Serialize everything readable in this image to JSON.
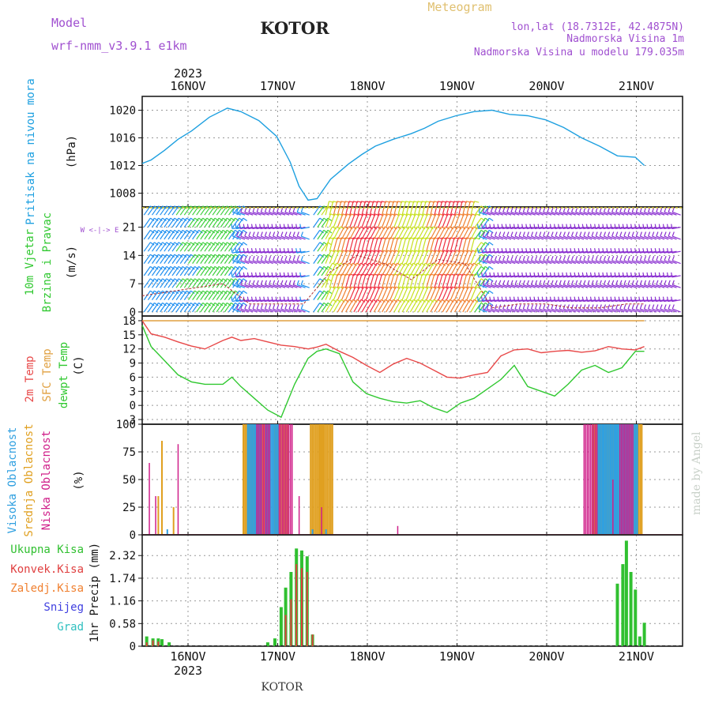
{
  "header": {
    "model_label": "Model",
    "model_name": "wrf-nmm_v3.9.1  e1km",
    "station": "KOTOR",
    "chart_title": "Meteogram",
    "lonlat": "lon,lat (18.7312E, 42.4875N)",
    "elevation": "Nadmorska Visina 1m",
    "model_elevation": "Nadmorska Visina u modelu 179.035m",
    "footer_station": "KOTOR",
    "watermark": "made by Angel"
  },
  "colors": {
    "pressure": "#1ea0e0",
    "t2m": "#e84848",
    "sfc": "#e0a040",
    "dewpt": "#30c830",
    "cloud_high": "#30a0e0",
    "cloud_mid": "#e0a020",
    "cloud_low": "#d0208a",
    "rain_total": "#30c030",
    "rain_conv": "#e04040",
    "rain_frz": "#f08030",
    "snow": "#4040e0",
    "hail": "#30c0c0",
    "title_purple": "#a050d0",
    "title_gold": "#e0c070",
    "grid": "#999999"
  },
  "chart_data": [
    {
      "type": "line",
      "panel": "pressure",
      "ylabel_1": "Pritisak na nivou mora",
      "ylabel_2": "(hPa)",
      "x_days": [
        "16NOV",
        "17NOV",
        "18NOV",
        "19NOV",
        "20NOV",
        "21NOV"
      ],
      "year_label": "2023",
      "ylim": [
        1006,
        1022
      ],
      "yticks": [
        1008,
        1012,
        1016,
        1020
      ],
      "x": [
        0,
        0.1,
        0.25,
        0.4,
        0.55,
        0.75,
        0.95,
        1.1,
        1.3,
        1.5,
        1.65,
        1.75,
        1.85,
        1.95,
        2.1,
        2.3,
        2.45,
        2.6,
        2.8,
        3.0,
        3.15,
        3.3,
        3.5,
        3.7,
        3.9,
        4.1,
        4.3,
        4.5,
        4.7,
        4.9,
        5.1,
        5.3,
        5.5,
        5.6
      ],
      "series": [
        {
          "values": [
            1012.3,
            1012.8,
            1014.2,
            1015.8,
            1017.0,
            1019.0,
            1020.3,
            1019.8,
            1018.5,
            1016.2,
            1012.5,
            1009.0,
            1007.0,
            1007.2,
            1010.0,
            1012.2,
            1013.6,
            1014.8,
            1015.8,
            1016.6,
            1017.4,
            1018.4,
            1019.2,
            1019.8,
            1020.0,
            1019.4,
            1019.2,
            1018.6,
            1017.5,
            1016.0,
            1014.8,
            1013.4,
            1013.2,
            1012.0
          ]
        }
      ]
    },
    {
      "type": "barbs",
      "panel": "wind",
      "ylabel_1": "10m Vjetar",
      "ylabel_2": "Brzina i Pravac",
      "ylabel_3": "(m/s)",
      "legend_glyph": "W  <-|->  E",
      "ylim": [
        -1,
        26
      ],
      "yticks": [
        0,
        7,
        14,
        21
      ],
      "x": [
        0,
        0.3,
        0.6,
        0.9,
        1.2,
        1.5,
        1.8,
        2.1,
        2.4,
        2.7,
        3.0,
        3.3,
        3.6,
        3.9,
        4.2,
        4.5,
        4.8,
        5.1,
        5.4,
        5.6
      ],
      "speed_values": [
        4,
        5,
        6,
        7,
        2,
        2,
        2,
        10,
        14,
        12,
        8,
        13,
        12,
        1,
        2,
        2,
        1,
        1,
        2,
        2
      ]
    },
    {
      "type": "line",
      "panel": "temperature",
      "ylabel_1": "2m Temp",
      "ylabel_2": "SFC Temp",
      "ylabel_3": "dewpt Temp",
      "ylabel_4": "(C)",
      "ylim": [
        -4,
        19
      ],
      "yticks": [
        -3,
        0,
        3,
        6,
        9,
        12,
        15,
        18
      ],
      "x": [
        0,
        0.1,
        0.25,
        0.4,
        0.55,
        0.7,
        0.9,
        1.0,
        1.1,
        1.25,
        1.4,
        1.55,
        1.7,
        1.85,
        1.95,
        2.05,
        2.2,
        2.35,
        2.5,
        2.65,
        2.8,
        2.95,
        3.1,
        3.25,
        3.4,
        3.55,
        3.7,
        3.85,
        4.0,
        4.15,
        4.3,
        4.45,
        4.6,
        4.75,
        4.9,
        5.05,
        5.2,
        5.35,
        5.5,
        5.6
      ],
      "series": [
        {
          "name": "2m Temp",
          "values": [
            18,
            15.2,
            14.5,
            13.5,
            12.6,
            12.0,
            13.8,
            14.5,
            13.8,
            14.2,
            13.5,
            12.8,
            12.5,
            12.0,
            12.4,
            13.0,
            11.5,
            10.2,
            8.5,
            7.0,
            8.8,
            10.0,
            9.0,
            7.5,
            6.0,
            5.8,
            6.5,
            7.0,
            10.5,
            11.8,
            12.0,
            11.2,
            11.5,
            11.7,
            11.3,
            11.6,
            12.5,
            12.0,
            11.8,
            12.5
          ]
        },
        {
          "name": "SFC Temp",
          "values": [
            18,
            18,
            18,
            18,
            18,
            18,
            18,
            18,
            18,
            18,
            18,
            18,
            18,
            18,
            18,
            18,
            18,
            18,
            18,
            18,
            18,
            18,
            18,
            18,
            18,
            18,
            18,
            18,
            18,
            18,
            18,
            18,
            18,
            18,
            18,
            18,
            18,
            18,
            18,
            18
          ]
        },
        {
          "name": "dewpt Temp",
          "values": [
            17,
            12.5,
            9.5,
            6.5,
            5.0,
            4.5,
            4.5,
            6.0,
            4.0,
            1.5,
            -1.0,
            -2.5,
            4.5,
            10.0,
            11.5,
            12.0,
            11.0,
            5.0,
            2.5,
            1.5,
            0.8,
            0.5,
            1.0,
            -0.5,
            -1.5,
            0.5,
            1.5,
            3.5,
            5.5,
            8.5,
            4.0,
            3.0,
            2.0,
            4.5,
            7.5,
            8.5,
            7.0,
            8.0,
            11.5,
            11.5
          ]
        }
      ]
    },
    {
      "type": "bar",
      "panel": "clouds",
      "ylabel_1": "Visoka Oblacnost",
      "ylabel_2": "Srednja Oblacnost",
      "ylabel_3": "Niska Oblacnost",
      "ylabel_4": "(%)",
      "ylim": [
        0,
        100
      ],
      "yticks": [
        0,
        25,
        50,
        75,
        100
      ],
      "bars_high": [
        [
          0.28,
          5
        ],
        [
          1.25,
          100
        ],
        [
          1.45,
          100
        ],
        [
          1.9,
          5
        ],
        [
          2.05,
          5
        ],
        [
          5.15,
          100
        ],
        [
          5.3,
          100
        ],
        [
          5.45,
          100
        ]
      ],
      "bars_mid": [
        [
          0.18,
          35
        ],
        [
          0.22,
          85
        ],
        [
          0.35,
          25
        ],
        [
          1.2,
          100
        ],
        [
          1.3,
          100
        ],
        [
          1.55,
          100
        ],
        [
          1.95,
          100
        ],
        [
          2.05,
          100
        ],
        [
          5.1,
          100
        ],
        [
          5.2,
          100
        ],
        [
          5.35,
          100
        ],
        [
          5.5,
          100
        ]
      ],
      "bars_low": [
        [
          0.08,
          65
        ],
        [
          0.15,
          35
        ],
        [
          0.4,
          82
        ],
        [
          1.35,
          100
        ],
        [
          1.6,
          100
        ],
        [
          1.75,
          35
        ],
        [
          2.0,
          25
        ],
        [
          2.85,
          8
        ],
        [
          5.0,
          100
        ],
        [
          5.25,
          50
        ],
        [
          5.4,
          100
        ]
      ]
    },
    {
      "type": "bar",
      "panel": "precip",
      "ylabel_1": "Ukupna Kisa",
      "ylabel_2": "Konvek.Kisa",
      "ylabel_3": "Zaledj.Kisa",
      "ylabel_4": "Snijeg",
      "ylabel_5": "Grad",
      "ylabel_6": "1hr Precip (mm)",
      "ylim": [
        0,
        2.85
      ],
      "yticks": [
        0,
        0.58,
        1.16,
        1.74,
        2.32
      ],
      "bars_total": [
        [
          0.05,
          0.25
        ],
        [
          0.12,
          0.2
        ],
        [
          0.18,
          0.2
        ],
        [
          0.22,
          0.18
        ],
        [
          0.3,
          0.1
        ],
        [
          1.4,
          0.1
        ],
        [
          1.48,
          0.2
        ],
        [
          1.55,
          1.0
        ],
        [
          1.6,
          1.5
        ],
        [
          1.66,
          1.9
        ],
        [
          1.72,
          2.5
        ],
        [
          1.78,
          2.45
        ],
        [
          1.84,
          2.3
        ],
        [
          1.9,
          0.3
        ],
        [
          5.3,
          1.6
        ],
        [
          5.36,
          2.1
        ],
        [
          5.4,
          2.7
        ],
        [
          5.45,
          1.9
        ],
        [
          5.5,
          1.45
        ],
        [
          5.55,
          0.25
        ],
        [
          5.6,
          0.6
        ]
      ],
      "bars_conv": [
        [
          0.05,
          0.1
        ],
        [
          0.12,
          0.15
        ],
        [
          0.18,
          0.12
        ],
        [
          1.6,
          0.8
        ],
        [
          1.66,
          1.2
        ],
        [
          1.72,
          2.1
        ],
        [
          1.78,
          2.0
        ],
        [
          1.84,
          1.9
        ],
        [
          1.9,
          0.3
        ]
      ]
    }
  ]
}
